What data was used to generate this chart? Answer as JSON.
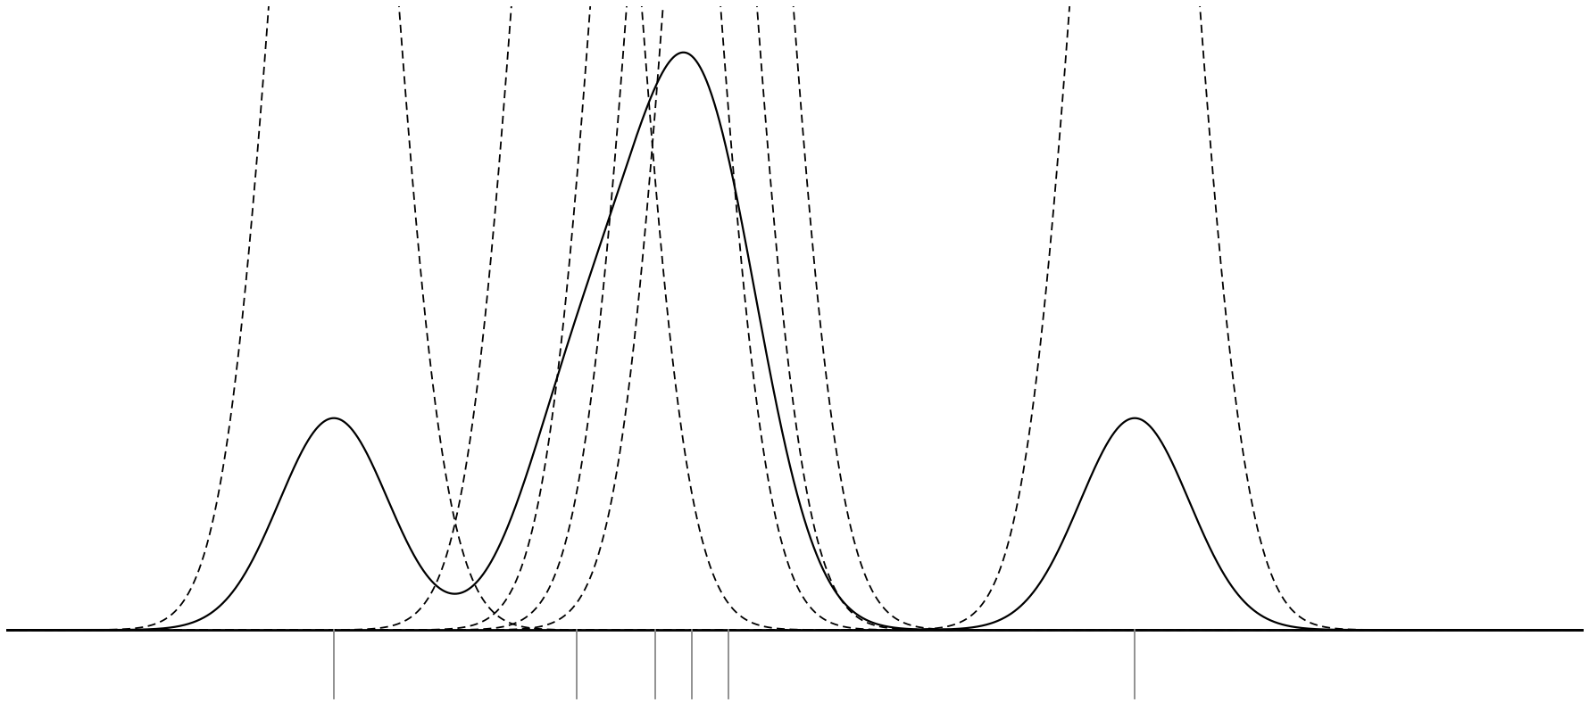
{
  "observations": [
    -1.8,
    0.2,
    0.85,
    1.15,
    1.45,
    4.8
  ],
  "bandwidth": 0.45,
  "x_min": -4.5,
  "x_max": 8.5,
  "background_color": "#ffffff",
  "kde_color": "#000000",
  "kernel_color": "#000000",
  "vline_color": "#888888",
  "kde_linewidth": 1.6,
  "kernel_linewidth": 1.3,
  "vline_linewidth": 1.3,
  "baseline_linewidth": 2.0,
  "spine_color": "#000000"
}
